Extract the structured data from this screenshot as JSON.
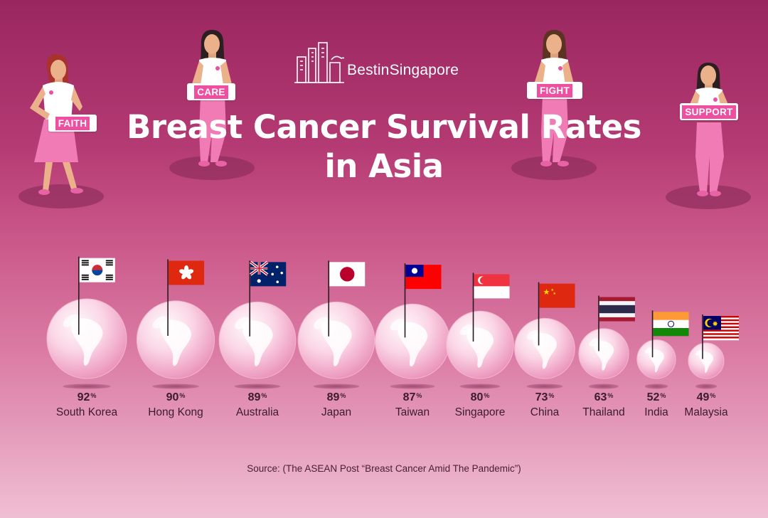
{
  "brand": {
    "name": "BestinSingapore"
  },
  "title": {
    "line1": "Breast Cancer Survival Rates",
    "line2": "in Asia"
  },
  "signs": [
    "FAITH",
    "CARE",
    "FIGHT",
    "SUPPORT"
  ],
  "colors": {
    "background_top": "#9a2660",
    "background_bottom": "#f0bfd3",
    "sign_pink": "#ef4fa0",
    "skirt_pink": "#f07bb5"
  },
  "chart_data": {
    "type": "bar",
    "encoding": "bubble size",
    "unit": "%",
    "categories": [
      "South Korea",
      "Hong Kong",
      "Australia",
      "Japan",
      "Taiwan",
      "Singapore",
      "China",
      "Thailand",
      "India",
      "Malaysia"
    ],
    "values": [
      92,
      90,
      89,
      89,
      87,
      80,
      73,
      63,
      52,
      49
    ]
  },
  "source": "Source: (The ASEAN Post “Breast Cancer Amid The Pandemic”)"
}
